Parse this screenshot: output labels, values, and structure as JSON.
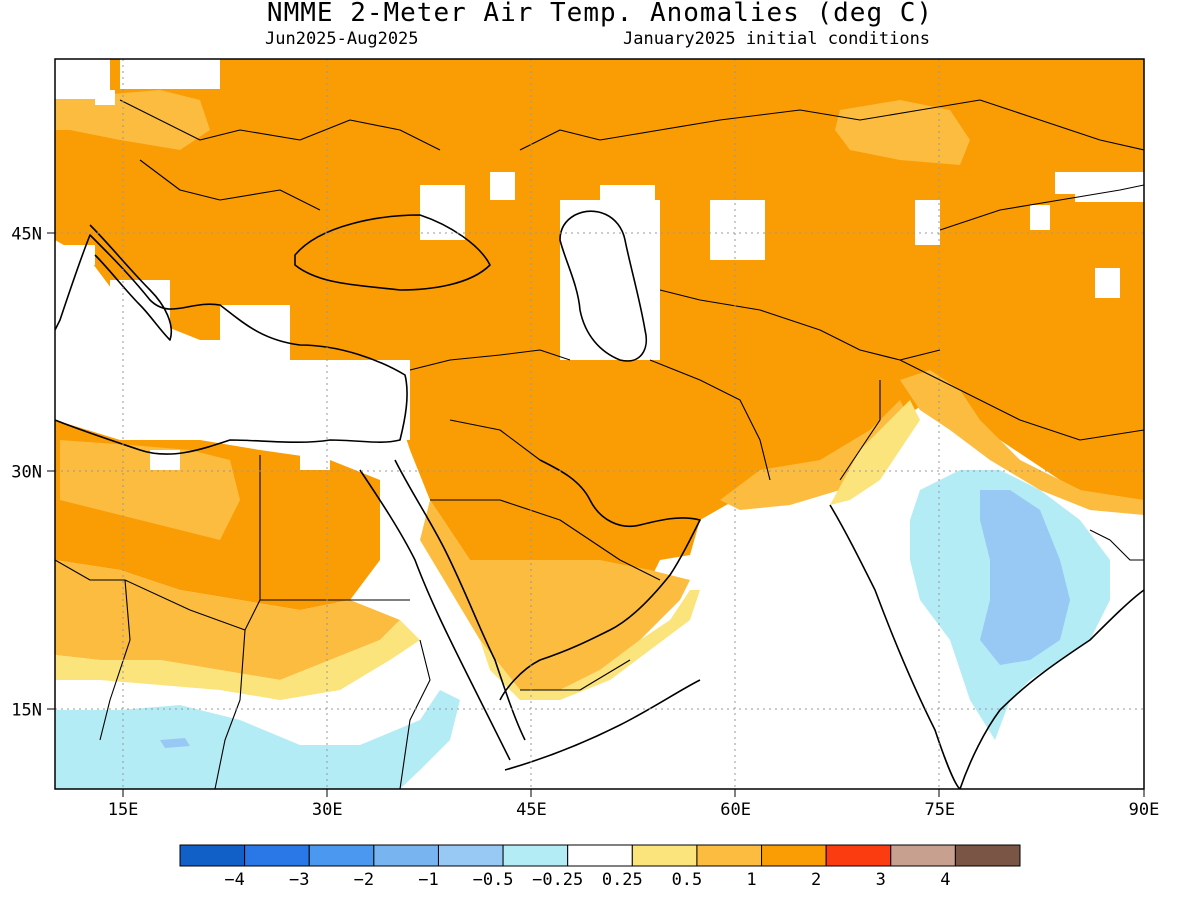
{
  "header": {
    "title": "NMME 2-Meter Air Temp. Anomalies (deg C)",
    "period": "Jun2025-Aug2025",
    "init": "January2025 initial conditions"
  },
  "axes": {
    "x_ticks": [
      "15E",
      "30E",
      "45E",
      "60E",
      "75E",
      "90E"
    ],
    "x_values": [
      15,
      30,
      45,
      60,
      75,
      90
    ],
    "y_ticks": [
      "45N",
      "30N",
      "15N"
    ],
    "y_values": [
      45,
      30,
      15
    ],
    "lon_range": [
      10,
      90
    ],
    "lat_range": [
      10,
      56
    ]
  },
  "colorbar": {
    "labels": [
      "-4",
      "-3",
      "-2",
      "-1",
      "-0.5",
      "-0.25",
      "0.25",
      "0.5",
      "1",
      "2",
      "3",
      "4"
    ],
    "colors": [
      "#1060c8",
      "#2a78e8",
      "#4a98f0",
      "#78b4f0",
      "#98c8f4",
      "#b4ecf6",
      "#ffffff",
      "#fce47c",
      "#fcbc40",
      "#fa9c04",
      "#fa3c10",
      "#c8a090",
      "#7a5444"
    ]
  },
  "palette": {
    "ocean": "#ffffff",
    "warm_light": "#fce47c",
    "warm_mid": "#fcbc40",
    "warm_strong": "#fa9c04",
    "cool_light": "#b4ecf6",
    "cool_mid": "#98c8f4",
    "border": "#000000",
    "grid": "#999999"
  }
}
